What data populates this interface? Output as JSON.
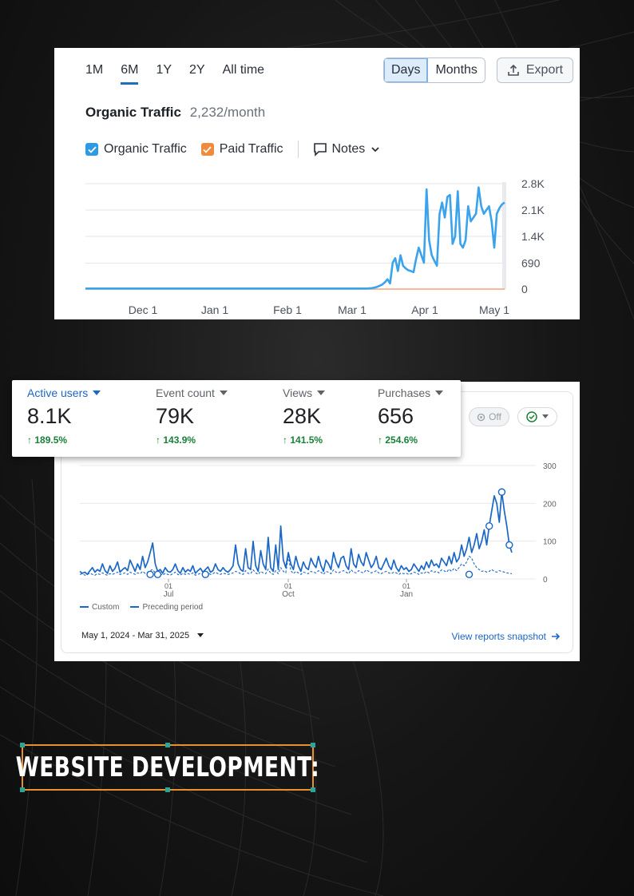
{
  "traffic_panel": {
    "range_tabs": [
      "1M",
      "6M",
      "1Y",
      "2Y",
      "All time"
    ],
    "active_range": "6M",
    "granularity": [
      "Days",
      "Months"
    ],
    "active_granularity": "Days",
    "export_label": "Export",
    "title": "Organic Traffic",
    "title_value": "2,232/month",
    "legend": {
      "organic": "Organic Traffic",
      "paid": "Paid Traffic",
      "notes": "Notes"
    },
    "colors": {
      "organic": "#3aa3ec",
      "paid": "#f4a27a",
      "accent": "#1d6fbf"
    }
  },
  "analytics_panel": {
    "metrics": [
      {
        "label": "Active users",
        "value": "8.1K",
        "delta": "189.5%"
      },
      {
        "label": "Event count",
        "value": "79K",
        "delta": "143.9%"
      },
      {
        "label": "Views",
        "value": "28K",
        "delta": "141.5%"
      },
      {
        "label": "Purchases",
        "value": "656",
        "delta": "254.6%"
      }
    ],
    "off_chip_label": "Off",
    "legend": {
      "custom": "Custom",
      "preceding": "Preceding period"
    },
    "date_range": "May 1, 2024 - Mar 31, 2025",
    "snapshot_link": "View reports snapshot",
    "colors": {
      "line": "#1a67c5",
      "delta": "#188038"
    }
  },
  "banner": {
    "text": "WEBSITE DEVELOPMENT:",
    "border_color": "#e8902c"
  },
  "chart_data": [
    {
      "type": "line",
      "title": "",
      "x_ticks": [
        "Dec 1",
        "Jan 1",
        "Feb 1",
        "Mar 1",
        "Apr 1",
        "May 1"
      ],
      "y_ticks": [
        "0",
        "690",
        "1.4K",
        "2.1K",
        "2.8K"
      ],
      "ylim": [
        0,
        2800
      ],
      "grid": true,
      "series": [
        {
          "name": "Organic Traffic",
          "values": [
            15,
            15,
            15,
            15,
            15,
            15,
            15,
            15,
            15,
            15,
            15,
            15,
            15,
            15,
            15,
            15,
            15,
            15,
            15,
            15,
            15,
            15,
            15,
            15,
            15,
            15,
            15,
            15,
            15,
            15,
            15,
            15,
            15,
            15,
            15,
            15,
            15,
            15,
            15,
            15,
            15,
            15,
            15,
            15,
            15,
            15,
            15,
            15,
            15,
            15,
            15,
            15,
            15,
            15,
            15,
            15,
            15,
            15,
            15,
            15,
            15,
            15,
            15,
            15,
            15,
            15,
            15,
            15,
            15,
            15,
            15,
            15,
            15,
            15,
            15,
            15,
            15,
            15,
            15,
            15,
            15,
            15,
            15,
            15,
            15,
            15,
            15,
            15,
            15,
            15,
            15,
            15,
            15,
            15,
            15,
            15,
            15,
            15,
            15,
            15,
            15,
            15,
            15,
            15,
            15,
            15,
            15,
            15,
            15,
            20,
            25,
            40,
            60,
            90,
            120,
            180,
            260,
            150,
            700,
            820,
            480,
            900,
            620,
            550,
            500,
            480,
            450,
            800,
            1100,
            900,
            700,
            2650,
            1300,
            900,
            750,
            620,
            2000,
            2300,
            1900,
            2450,
            2500,
            1200,
            1400,
            2600,
            1200,
            1100,
            1300,
            2200,
            1800,
            1900,
            2000,
            2700,
            2200,
            2000,
            2100,
            2200,
            1800,
            1100,
            2000,
            2150,
            2250,
            2300
          ]
        },
        {
          "name": "Paid Traffic",
          "values": [
            0,
            0,
            0,
            0,
            0,
            0,
            0,
            0,
            0,
            0,
            0,
            0,
            0,
            0,
            0,
            0,
            0,
            0,
            0,
            0,
            0,
            0,
            0,
            0,
            0,
            0,
            0,
            0,
            0,
            0,
            0,
            0,
            0,
            0,
            0,
            0,
            0,
            0,
            0,
            0,
            0,
            0,
            0,
            0,
            0,
            0,
            0,
            0,
            0,
            0,
            0,
            0,
            0,
            0,
            0,
            0,
            0,
            0,
            0,
            0,
            0,
            0,
            0,
            0,
            0,
            0,
            0,
            0,
            0,
            0,
            0,
            0,
            0,
            0,
            0,
            0,
            0,
            0,
            0,
            0,
            0,
            0,
            0,
            0,
            0,
            0,
            0,
            0,
            0,
            0,
            0,
            0,
            0,
            0,
            0,
            0,
            0,
            0,
            0,
            0,
            0,
            0,
            0,
            0,
            0,
            0,
            0,
            0,
            0,
            0,
            0,
            0,
            0,
            0,
            0,
            0,
            0,
            0,
            0,
            0,
            0,
            0,
            0,
            0,
            0,
            0,
            0,
            0,
            0,
            0,
            0,
            0,
            0,
            0,
            0,
            0,
            0,
            0,
            0,
            0,
            0,
            0,
            0,
            0,
            0,
            0,
            0,
            0,
            0,
            0,
            0,
            0,
            0,
            0,
            0,
            0,
            0,
            0,
            0,
            0,
            0,
            0,
            0,
            0,
            0,
            0,
            0,
            0,
            0,
            0,
            0,
            0,
            0,
            0,
            0
          ]
        }
      ]
    },
    {
      "type": "line",
      "title": "",
      "x_ticks": [
        "01 Jul",
        "01 Oct",
        "01 Jan"
      ],
      "y_ticks": [
        "0",
        "100",
        "200",
        "300"
      ],
      "ylim": [
        0,
        300
      ],
      "grid": true,
      "series": [
        {
          "name": "Custom",
          "values": [
            20,
            15,
            18,
            12,
            22,
            30,
            18,
            25,
            20,
            40,
            22,
            15,
            35,
            20,
            28,
            45,
            18,
            25,
            30,
            22,
            50,
            35,
            20,
            40,
            25,
            60,
            30,
            45,
            70,
            95,
            40,
            20,
            25,
            15,
            30,
            20,
            18,
            25,
            40,
            22,
            15,
            30,
            18,
            25,
            20,
            35,
            15,
            22,
            28,
            18,
            25,
            32,
            18,
            22,
            40,
            25,
            20,
            30,
            22,
            18,
            25,
            35,
            90,
            40,
            25,
            20,
            80,
            30,
            25,
            100,
            35,
            20,
            75,
            40,
            25,
            110,
            30,
            20,
            90,
            25,
            140,
            50,
            30,
            70,
            40,
            25,
            60,
            35,
            20,
            45,
            30,
            25,
            55,
            40,
            30,
            60,
            35,
            20,
            50,
            40,
            25,
            70,
            45,
            30,
            55,
            60,
            35,
            25,
            80,
            40,
            30,
            65,
            45,
            35,
            70,
            50,
            30,
            40,
            60,
            30,
            25,
            40,
            55,
            35,
            25,
            50,
            30,
            20,
            35,
            25,
            30,
            20,
            25,
            40,
            30,
            20,
            35,
            25,
            45,
            30,
            50,
            35,
            40,
            30,
            55,
            45,
            35,
            60,
            40,
            70,
            45,
            55,
            90,
            60,
            80,
            110,
            70,
            90,
            120,
            80,
            100,
            130,
            90,
            140,
            180,
            220,
            200,
            150,
            230,
            180,
            140,
            90,
            70
          ]
        },
        {
          "name": "Preceding period",
          "values": [
            12,
            14,
            10,
            12,
            15,
            12,
            10,
            14,
            12,
            16,
            12,
            10,
            14,
            12,
            15,
            18,
            12,
            14,
            16,
            12,
            18,
            15,
            12,
            16,
            14,
            20,
            15,
            18,
            22,
            25,
            16,
            12,
            14,
            10,
            15,
            12,
            10,
            14,
            18,
            12,
            10,
            15,
            12,
            14,
            12,
            16,
            10,
            12,
            15,
            12,
            14,
            16,
            12,
            14,
            18,
            14,
            12,
            15,
            14,
            12,
            14,
            16,
            20,
            18,
            14,
            12,
            22,
            15,
            14,
            24,
            16,
            12,
            20,
            16,
            14,
            26,
            15,
            12,
            22,
            14,
            30,
            20,
            16,
            60,
            22,
            14,
            20,
            16,
            12,
            18,
            16,
            14,
            20,
            18,
            16,
            22,
            18,
            12,
            20,
            18,
            14,
            24,
            18,
            16,
            20,
            22,
            18,
            14,
            24,
            18,
            16,
            22,
            18,
            16,
            24,
            20,
            16,
            18,
            22,
            16,
            14,
            18,
            20,
            16,
            14,
            18,
            16,
            12,
            16,
            14,
            15,
            12,
            14,
            18,
            16,
            12,
            16,
            14,
            20,
            16,
            22,
            18,
            20,
            16,
            24,
            22,
            18,
            26,
            20,
            28,
            22,
            30,
            40,
            35,
            45,
            60,
            55,
            40,
            30,
            25,
            20,
            22,
            18,
            20,
            25,
            20,
            18,
            22,
            20,
            18,
            16,
            15,
            14
          ]
        }
      ]
    }
  ]
}
